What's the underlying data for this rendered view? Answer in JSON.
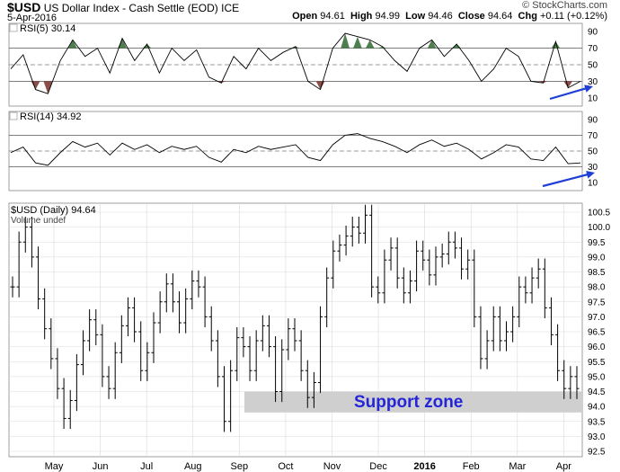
{
  "header": {
    "symbol": "$USD",
    "name": "US Dollar Index - Cash Settle (EOD)",
    "exchange": "ICE",
    "date": "5-Apr-2016",
    "source": "© StockCharts.com",
    "open_label": "Open",
    "open": "94.61",
    "high_label": "High",
    "high": "94.99",
    "low_label": "Low",
    "low": "94.46",
    "close_label": "Close",
    "close": "94.64",
    "chg_label": "Chg",
    "chg": "+0.11 (+0.12%)"
  },
  "colors": {
    "price_bar": "#000000",
    "rsi_line": "#000000",
    "overbought_fill": "#4f7f4f",
    "oversold_fill": "#8c4e48",
    "arrow": "#1f3fd6",
    "support_zone": "#cfcfcf",
    "support_text": "#2424d8",
    "grid": "#d9d9d9"
  },
  "annotations": {
    "support_zone": "Support zone"
  },
  "chart_data": [
    {
      "type": "line",
      "title": "RSI(5) 30.14",
      "ylim": [
        0,
        100
      ],
      "y_ticks": [
        10,
        30,
        50,
        70,
        90
      ],
      "reference_lines": [
        30,
        50,
        70
      ],
      "grid": true,
      "x": [
        "Apr",
        "Apr",
        "May",
        "May",
        "May",
        "May",
        "Jun",
        "Jun",
        "Jun",
        "Jun",
        "Jul",
        "Jul",
        "Jul",
        "Jul",
        "Aug",
        "Aug",
        "Aug",
        "Aug",
        "Sep",
        "Sep",
        "Sep",
        "Sep",
        "Oct",
        "Oct",
        "Oct",
        "Oct",
        "Nov",
        "Nov",
        "Nov",
        "Nov",
        "Dec",
        "Dec",
        "Dec",
        "Dec",
        "Jan",
        "Jan",
        "Jan",
        "Jan",
        "Feb",
        "Feb",
        "Feb",
        "Feb",
        "Mar",
        "Mar",
        "Mar",
        "Mar",
        "Apr"
      ],
      "values": [
        45,
        62,
        20,
        15,
        55,
        80,
        60,
        70,
        40,
        82,
        55,
        75,
        40,
        70,
        55,
        68,
        35,
        28,
        60,
        45,
        70,
        55,
        65,
        72,
        30,
        20,
        70,
        88,
        84,
        80,
        72,
        55,
        42,
        70,
        80,
        60,
        75,
        55,
        30,
        45,
        70,
        60,
        30,
        28,
        78,
        22,
        30
      ]
    },
    {
      "type": "line",
      "title": "RSI(14) 34.92",
      "ylim": [
        0,
        100
      ],
      "y_ticks": [
        10,
        30,
        50,
        70,
        90
      ],
      "reference_lines": [
        30,
        50,
        70
      ],
      "grid": true,
      "values": [
        48,
        55,
        35,
        32,
        48,
        62,
        55,
        60,
        45,
        60,
        52,
        58,
        48,
        56,
        52,
        56,
        42,
        36,
        52,
        48,
        56,
        52,
        55,
        58,
        42,
        38,
        58,
        70,
        72,
        66,
        62,
        56,
        48,
        58,
        64,
        56,
        60,
        52,
        40,
        48,
        58,
        55,
        40,
        38,
        55,
        34,
        35
      ]
    },
    {
      "type": "bar",
      "title": "$USD (Daily) 94.64",
      "subtitle": "Volume undef",
      "ylim": [
        92.5,
        100.5
      ],
      "y_ticks": [
        "92.5",
        "93.0",
        "93.5",
        "94.0",
        "94.5",
        "95.0",
        "95.5",
        "96.0",
        "96.5",
        "97.0",
        "97.5",
        "98.0",
        "98.5",
        "99.0",
        "99.5",
        "100.0",
        "100.5"
      ],
      "x_ticks": [
        "May",
        "Jun",
        "Jul",
        "Aug",
        "Sep",
        "Oct",
        "Nov",
        "Dec",
        "2016",
        "Feb",
        "Mar",
        "Apr"
      ],
      "grid": true,
      "series": [
        {
          "values": [
            98.0,
            99.5,
            100.0,
            99.0,
            97.6,
            96.6,
            95.6,
            94.6,
            93.6,
            94.2,
            95.4,
            96.2,
            96.9,
            96.4,
            95.0,
            94.6,
            95.8,
            96.7,
            97.3,
            96.5,
            95.2,
            95.8,
            96.8,
            97.5,
            98.1,
            97.5,
            96.8,
            97.6,
            98.2,
            98.0,
            97.0,
            96.2,
            95.0,
            93.5,
            95.2,
            96.3,
            96.0,
            95.2,
            96.2,
            96.7,
            96.0,
            94.5,
            95.9,
            96.6,
            96.2,
            95.2,
            94.3,
            94.8,
            97.0,
            98.3,
            99.2,
            99.4,
            99.7,
            100.0,
            99.8,
            100.4,
            98.0,
            97.8,
            98.9,
            99.3,
            98.3,
            97.8,
            98.2,
            99.2,
            98.9,
            98.4,
            99.0,
            99.1,
            99.5,
            99.3,
            98.6,
            98.9,
            97.0,
            95.6,
            96.2,
            97.0,
            96.2,
            96.5,
            97.0,
            98.0,
            97.8,
            98.3,
            98.6,
            97.3,
            96.4,
            95.2,
            94.6,
            95.0,
            94.6
          ]
        }
      ]
    }
  ]
}
